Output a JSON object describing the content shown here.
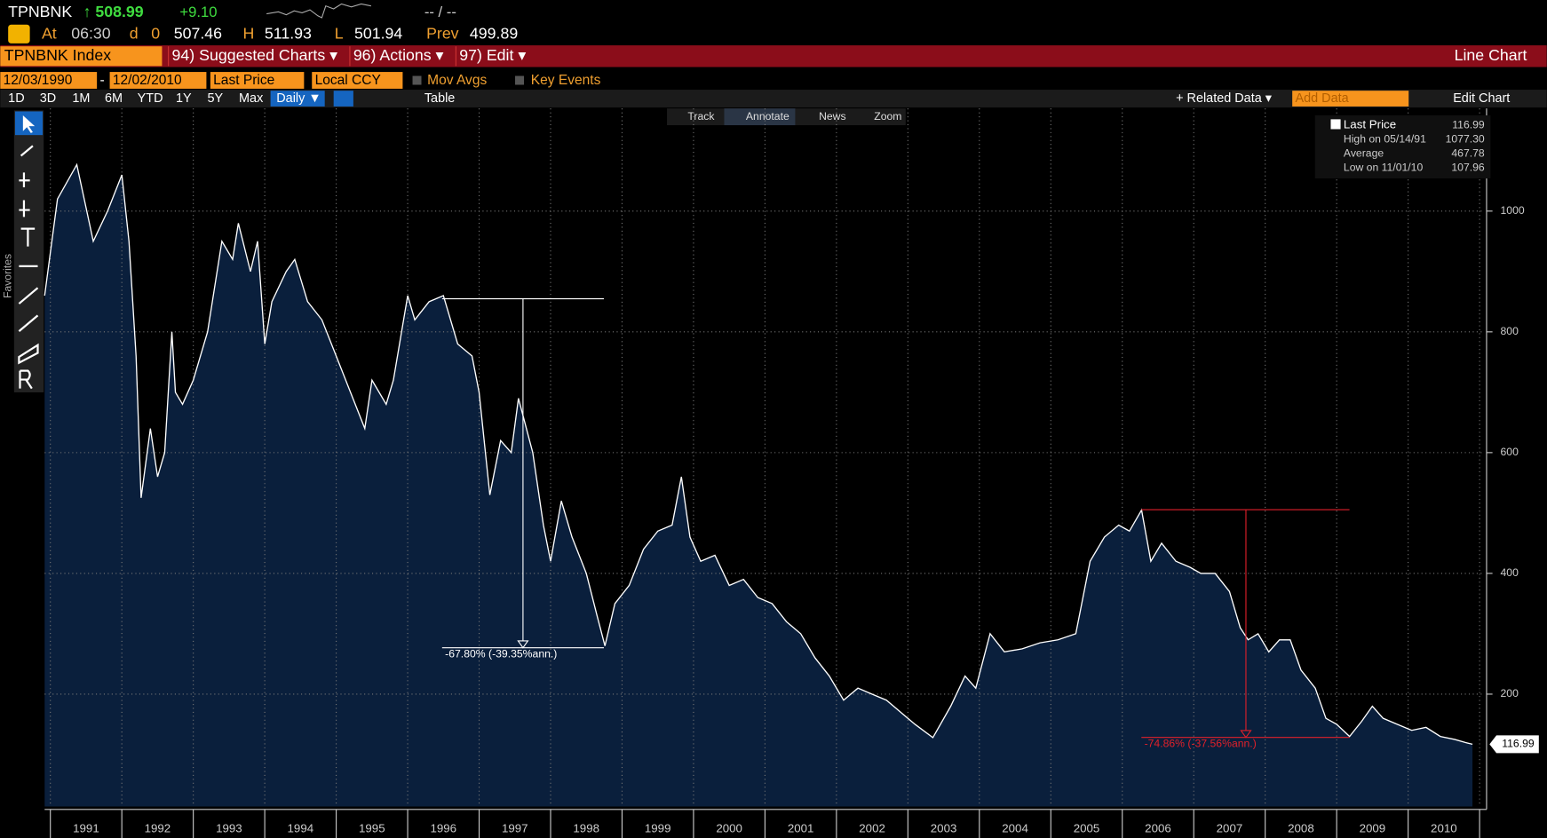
{
  "header": {
    "ticker": "TPNBNK",
    "last": "↑ 508.99",
    "change": "+9.10",
    "bidask": "-- / --",
    "at_label": "At",
    "time": "06:30",
    "d_label": "d",
    "open_label": "0",
    "open": "507.46",
    "high_label": "H",
    "high": "511.93",
    "low_label": "L",
    "low": "501.94",
    "prev_label": "Prev",
    "prev": "499.89"
  },
  "menu": {
    "security": "TPNBNK Index",
    "items": [
      "94) Suggested Charts ▾",
      "96) Actions ▾",
      "97) Edit ▾"
    ],
    "chart_kind": "Line Chart"
  },
  "options": {
    "start": "12/03/1990",
    "dash": "-",
    "end": "12/02/2010",
    "field": "Last Price",
    "currency": "Local CCY",
    "mov_avgs": "Mov Avgs",
    "key_events": "Key Events"
  },
  "periods": [
    "1D",
    "3D",
    "1M",
    "6M",
    "YTD",
    "1Y",
    "5Y",
    "Max"
  ],
  "frequency": "Daily ▼",
  "table": "Table",
  "right_tools": {
    "related": "+ Related Data ▾",
    "add": "Add Data",
    "edit": "Edit Chart"
  },
  "chart_tools": [
    "Track",
    "Annotate",
    "News",
    "Zoom"
  ],
  "favorites": "Favorites",
  "legend": [
    {
      "label": "Last Price",
      "value": "116.99"
    },
    {
      "label": "High on 05/14/91",
      "value": "1077.30"
    },
    {
      "label": "Average",
      "value": "467.78"
    },
    {
      "label": "Low on 11/01/10",
      "value": "107.96"
    }
  ],
  "chart_data": {
    "type": "line",
    "annotations": [
      "-67.80% (-39.35%ann.)",
      "-74.86% (-37.56%ann.)"
    ],
    "last_badge": "116.99",
    "categories": [
      "1991",
      "1992",
      "1993",
      "1994",
      "1995",
      "1996",
      "1997",
      "1998",
      "1999",
      "2000",
      "2001",
      "2002",
      "2003",
      "2004",
      "2005",
      "2006",
      "2007",
      "2008",
      "2009",
      "2010"
    ],
    "xlim": [
      1990.92,
      2011.07
    ],
    "xticks": [
      1991,
      1992,
      1993,
      1994,
      1995,
      1996,
      1997,
      1998,
      1999,
      2000,
      2001,
      2002,
      2003,
      2004,
      2005,
      2006,
      2007,
      2008,
      2009,
      2010,
      2011
    ],
    "ylim": [
      14,
      1170
    ],
    "yticks": [
      200,
      400,
      600,
      800,
      1000
    ],
    "grid": true,
    "series": [
      {
        "name": "Last Price",
        "color": "#ffffff",
        "fill": "#0a1f3c",
        "x": [
          1990.92,
          1991.1,
          1991.37,
          1991.6,
          1991.8,
          1992.0,
          1992.1,
          1992.2,
          1992.27,
          1992.4,
          1992.5,
          1992.6,
          1992.7,
          1992.75,
          1992.85,
          1993.0,
          1993.2,
          1993.4,
          1993.55,
          1993.63,
          1993.8,
          1993.9,
          1994.0,
          1994.1,
          1994.3,
          1994.42,
          1994.6,
          1994.8,
          1995.0,
          1995.2,
          1995.4,
          1995.5,
          1995.7,
          1995.8,
          1996.0,
          1996.1,
          1996.3,
          1996.5,
          1996.7,
          1996.9,
          1997.0,
          1997.15,
          1997.3,
          1997.45,
          1997.55,
          1997.75,
          1997.9,
          1998.0,
          1998.15,
          1998.3,
          1998.5,
          1998.65,
          1998.76,
          1998.9,
          1999.1,
          1999.3,
          1999.5,
          1999.7,
          1999.83,
          1999.95,
          2000.1,
          2000.3,
          2000.5,
          2000.7,
          2000.9,
          2001.1,
          2001.3,
          2001.5,
          2001.7,
          2001.9,
          2002.1,
          2002.3,
          2002.5,
          2002.7,
          2002.9,
          2003.1,
          2003.35,
          2003.6,
          2003.8,
          2003.95,
          2004.15,
          2004.35,
          2004.6,
          2004.85,
          2005.1,
          2005.35,
          2005.55,
          2005.75,
          2005.95,
          2006.1,
          2006.27,
          2006.4,
          2006.55,
          2006.75,
          2006.95,
          2007.1,
          2007.3,
          2007.5,
          2007.65,
          2007.76,
          2007.9,
          2008.05,
          2008.2,
          2008.35,
          2008.5,
          2008.7,
          2008.85,
          2009.0,
          2009.18,
          2009.35,
          2009.5,
          2009.65,
          2009.85,
          2010.05,
          2010.25,
          2010.45,
          2010.65,
          2010.8,
          2010.9
        ],
        "values": [
          860,
          1020,
          1077,
          950,
          1000,
          1060,
          950,
          760,
          525,
          640,
          560,
          600,
          800,
          700,
          680,
          720,
          800,
          950,
          920,
          980,
          900,
          950,
          780,
          850,
          900,
          920,
          850,
          820,
          760,
          700,
          640,
          720,
          680,
          720,
          860,
          820,
          850,
          860,
          780,
          760,
          700,
          530,
          620,
          600,
          690,
          600,
          480,
          420,
          520,
          460,
          400,
          330,
          280,
          350,
          380,
          440,
          470,
          480,
          560,
          460,
          420,
          430,
          380,
          390,
          360,
          350,
          320,
          300,
          260,
          230,
          190,
          210,
          200,
          190,
          170,
          150,
          128,
          180,
          230,
          210,
          300,
          270,
          275,
          285,
          290,
          300,
          420,
          460,
          480,
          470,
          505,
          420,
          450,
          420,
          410,
          400,
          400,
          370,
          310,
          290,
          300,
          270,
          290,
          290,
          240,
          210,
          160,
          150,
          130,
          155,
          180,
          160,
          150,
          140,
          145,
          130,
          125,
          120,
          116.99
        ]
      }
    ]
  }
}
